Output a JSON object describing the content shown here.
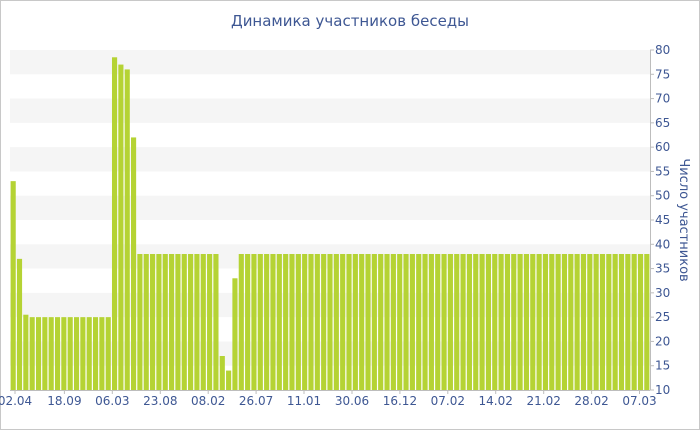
{
  "chart_data": {
    "type": "bar",
    "title": "Динамика участников беседы",
    "xlabel": "",
    "ylabel": "Число участников",
    "ylim": [
      10,
      80
    ],
    "y_ticks": [
      10,
      15,
      20,
      25,
      30,
      35,
      40,
      45,
      50,
      55,
      60,
      65,
      70,
      75,
      80
    ],
    "x_tick_labels": [
      "02.04",
      "18.09",
      "06.03",
      "23.08",
      "08.02",
      "26.07",
      "11.01",
      "30.06",
      "16.12",
      "07.02",
      "14.02",
      "21.02",
      "28.02",
      "07.03"
    ],
    "grid": "horizontal alternating bands",
    "y_axis_position": "right",
    "bar_color": "#b5d334",
    "band_color": "#f5f5f5",
    "values": [
      53,
      37,
      25.5,
      25,
      25,
      25,
      25,
      25,
      25,
      25,
      25,
      25,
      25,
      25,
      25,
      25,
      78.5,
      77,
      76,
      62,
      38,
      38,
      38,
      38,
      38,
      38,
      38,
      38,
      38,
      38,
      38,
      38,
      38,
      17,
      14,
      33,
      38,
      38,
      38,
      38,
      38,
      38,
      38,
      38,
      38,
      38,
      38,
      38,
      38,
      38,
      38,
      38,
      38,
      38,
      38,
      38,
      38,
      38,
      38,
      38,
      38,
      38,
      38,
      38,
      38,
      38,
      38,
      38,
      38,
      38,
      38,
      38,
      38,
      38,
      38,
      38,
      38,
      38,
      38,
      38,
      38,
      38,
      38,
      38,
      38,
      38,
      38,
      38,
      38,
      38,
      38,
      38,
      38,
      38,
      38,
      38,
      38,
      38,
      38,
      38,
      38
    ]
  }
}
